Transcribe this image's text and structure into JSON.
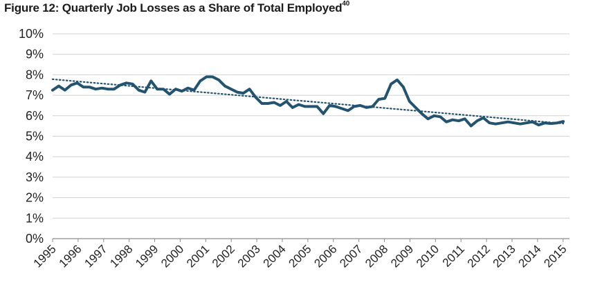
{
  "title": "Figure 12: Quarterly Job Losses as a Share of Total Employed",
  "title_footnote": "40",
  "chart_data": {
    "type": "line",
    "title": "Figure 12: Quarterly Job Losses as a Share of Total Employed",
    "xlabel": "",
    "ylabel": "",
    "ylim": [
      0,
      10
    ],
    "y_ticks": [
      "0%",
      "1%",
      "2%",
      "3%",
      "4%",
      "5%",
      "6%",
      "7%",
      "8%",
      "9%",
      "10%"
    ],
    "x_range": [
      1995.0,
      2015.75
    ],
    "x_ticks": [
      "1995",
      "1996",
      "1997",
      "1998",
      "1999",
      "2000",
      "2001",
      "2002",
      "2003",
      "2004",
      "2005",
      "2006",
      "2007",
      "2008",
      "2009",
      "2010",
      "2011",
      "2012",
      "2013",
      "2014",
      "2015"
    ],
    "grid": true,
    "legend": "none",
    "colors": {
      "series": "#22536f",
      "trend": "#22536f",
      "grid": "#d0d0d0",
      "axis": "#8c8c8c"
    },
    "series": [
      {
        "line_style": "solid",
        "x": [
          1995.0,
          1995.25,
          1995.5,
          1995.75,
          1996.0,
          1996.25,
          1996.5,
          1996.75,
          1997.0,
          1997.25,
          1997.5,
          1997.75,
          1998.0,
          1998.25,
          1998.5,
          1998.75,
          1999.0,
          1999.25,
          1999.5,
          1999.75,
          2000.0,
          2000.25,
          2000.5,
          2000.75,
          2001.0,
          2001.25,
          2001.5,
          2001.75,
          2002.0,
          2002.25,
          2002.5,
          2002.75,
          2003.0,
          2003.25,
          2003.5,
          2003.75,
          2004.0,
          2004.25,
          2004.5,
          2004.75,
          2005.0,
          2005.25,
          2005.5,
          2005.75,
          2006.0,
          2006.25,
          2006.5,
          2006.75,
          2007.0,
          2007.25,
          2007.5,
          2007.75,
          2008.0,
          2008.25,
          2008.5,
          2008.75,
          2009.0,
          2009.25,
          2009.5,
          2009.75,
          2010.0,
          2010.25,
          2010.5,
          2010.75,
          2011.0,
          2011.25,
          2011.5,
          2011.75,
          2012.0,
          2012.25,
          2012.5,
          2012.75,
          2013.0,
          2013.25,
          2013.5,
          2013.75,
          2014.0,
          2014.25,
          2014.5,
          2014.75,
          2015.0,
          2015.25,
          2015.5,
          2015.75
        ],
        "values": [
          7.25,
          7.45,
          7.25,
          7.5,
          7.6,
          7.4,
          7.4,
          7.3,
          7.35,
          7.3,
          7.3,
          7.5,
          7.6,
          7.55,
          7.25,
          7.15,
          7.7,
          7.3,
          7.3,
          7.05,
          7.3,
          7.2,
          7.35,
          7.25,
          7.7,
          7.9,
          7.9,
          7.75,
          7.45,
          7.3,
          7.15,
          7.1,
          7.3,
          6.9,
          6.6,
          6.6,
          6.65,
          6.5,
          6.7,
          6.4,
          6.55,
          6.45,
          6.45,
          6.45,
          6.1,
          6.5,
          6.45,
          6.35,
          6.25,
          6.45,
          6.5,
          6.4,
          6.45,
          6.8,
          6.85,
          7.55,
          7.75,
          7.4,
          6.7,
          6.4,
          6.1,
          5.85,
          6.0,
          5.95,
          5.7,
          5.8,
          5.75,
          5.85,
          5.5,
          5.75,
          5.9,
          5.65,
          5.6,
          5.65,
          5.7,
          5.65,
          5.6,
          5.65,
          5.7,
          5.55,
          5.65,
          5.62,
          5.65,
          5.72
        ]
      },
      {
        "line_style": "dotted",
        "x": [
          1995.0,
          2015.75
        ],
        "values": [
          7.78,
          5.62
        ]
      }
    ]
  }
}
